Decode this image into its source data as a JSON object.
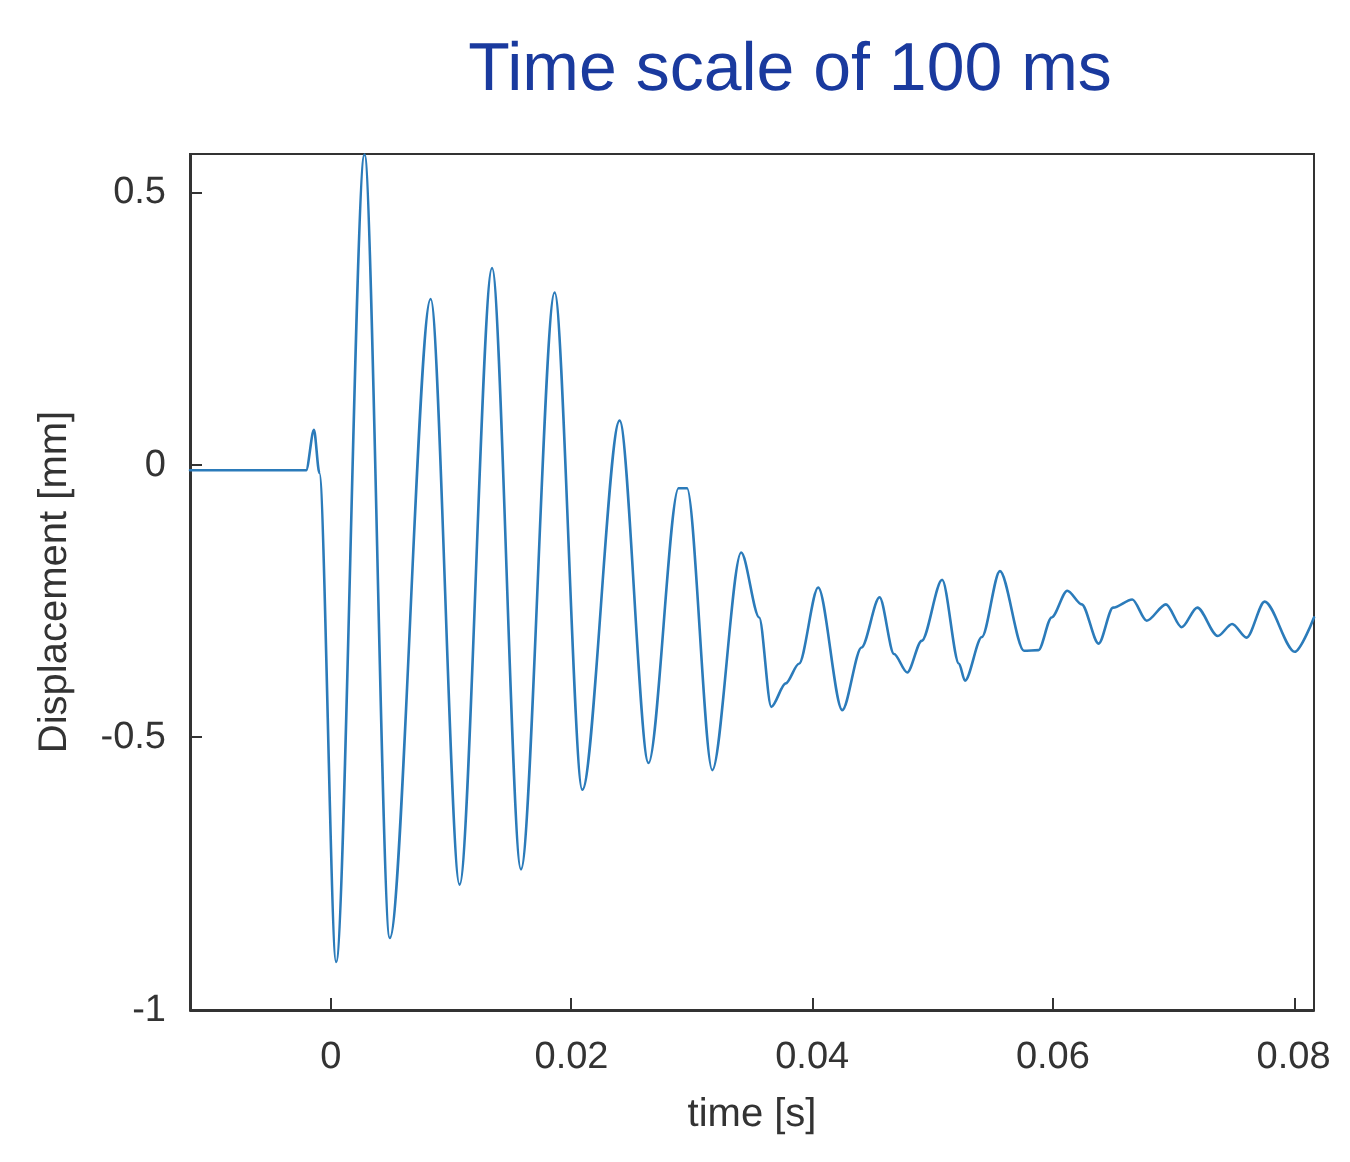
{
  "chart_data": {
    "type": "line",
    "title": "Time scale of 100 ms",
    "xlabel": "time [s]",
    "ylabel": "Displacement [mm]",
    "xlim": [
      -0.0117,
      0.0817
    ],
    "xticks": [
      0,
      0.02,
      0.04,
      0.06,
      0.08
    ],
    "ylim": [
      -1,
      0.57
    ],
    "yticks": [
      -1,
      -0.5,
      0,
      0.5
    ],
    "grid": false,
    "marker": "none",
    "line_style": "solid",
    "series": [
      {
        "color": "#2b7bba",
        "x": [
          -0.0117,
          -0.00205,
          -0.0014,
          -0.00095,
          0.00044,
          0.0028,
          0.0049,
          0.0083,
          0.0107,
          0.0134,
          0.0158,
          0.0186,
          0.0209,
          0.024,
          0.0264,
          0.0289,
          0.0296,
          0.0317,
          0.0341,
          0.0356,
          0.0366,
          0.0378,
          0.0389,
          0.0405,
          0.0425,
          0.0441,
          0.0456,
          0.0468,
          0.0479,
          0.0491,
          0.0508,
          0.0522,
          0.0527,
          0.0541,
          0.0556,
          0.0576,
          0.0588,
          0.0599,
          0.0612,
          0.0624,
          0.0638,
          0.065,
          0.0666,
          0.0678,
          0.0694,
          0.0707,
          0.072,
          0.0737,
          0.0749,
          0.0761,
          0.0776,
          0.0801,
          0.0817
        ],
        "values": [
          -0.01,
          -0.01,
          0.064,
          -0.015,
          -0.912,
          0.569,
          -0.868,
          0.304,
          -0.77,
          0.361,
          -0.742,
          0.316,
          -0.596,
          0.081,
          -0.547,
          -0.043,
          -0.043,
          -0.56,
          -0.161,
          -0.28,
          -0.444,
          -0.401,
          -0.365,
          -0.225,
          -0.45,
          -0.335,
          -0.243,
          -0.347,
          -0.381,
          -0.323,
          -0.211,
          -0.365,
          -0.396,
          -0.316,
          -0.195,
          -0.341,
          -0.34,
          -0.28,
          -0.231,
          -0.256,
          -0.328,
          -0.262,
          -0.247,
          -0.286,
          -0.256,
          -0.298,
          -0.262,
          -0.314,
          -0.292,
          -0.317,
          -0.251,
          -0.343,
          -0.28
        ]
      }
    ]
  }
}
